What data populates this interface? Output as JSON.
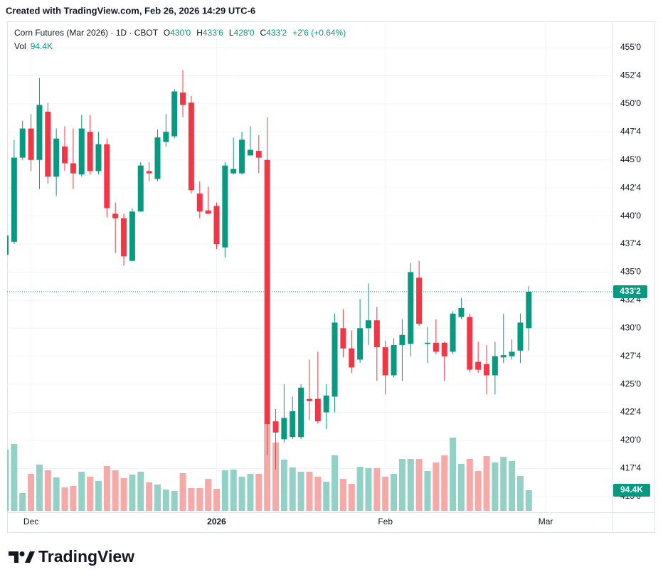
{
  "header": {
    "credit": "Created with TradingView.com, Feb 26, 2026 14:29 UTC-6"
  },
  "footer": {
    "logo": "TradingView"
  },
  "chart_data": {
    "type": "candlestick",
    "title": "Corn Futures (Mar 2026) · 1D · CBOT",
    "ohlc_legend": [
      {
        "key": "O",
        "value": 430,
        "label": "430'0"
      },
      {
        "key": "H",
        "value": 433.75,
        "label": "433'6"
      },
      {
        "key": "L",
        "value": 428,
        "label": "428'0"
      },
      {
        "key": "C",
        "value": 433.25,
        "label": "433'2"
      }
    ],
    "change": "+2'6 (+0.64%)",
    "volume_legend": {
      "key": "Vol",
      "value": 94400,
      "label": "94.4K"
    },
    "last_price": {
      "value": 433.25,
      "label": "433'2"
    },
    "up_color": "#089981",
    "down_color": "#f23645",
    "up_volume_color": "#92d2c6",
    "down_volume_color": "#f7a9a7",
    "grid": true,
    "categories": [
      null,
      null,
      null,
      "Dec",
      null,
      null,
      null,
      null,
      null,
      null,
      null,
      null,
      null,
      null,
      null,
      null,
      null,
      null,
      null,
      null,
      null,
      null,
      null,
      null,
      null,
      "2026",
      null,
      null,
      null,
      null,
      null,
      null,
      null,
      null,
      null,
      null,
      null,
      null,
      null,
      null,
      null,
      null,
      null,
      null,
      null,
      "Feb",
      null,
      null,
      null,
      null,
      null,
      null,
      null,
      null,
      null,
      null,
      null,
      null,
      null,
      null,
      null,
      null,
      null,
      null,
      "Mar"
    ],
    "open": [
      436.55,
      437.7,
      445.2,
      447.8,
      445,
      449.3,
      443.5,
      446.2,
      444.7,
      443.7,
      447.5,
      444,
      446.4,
      440.2,
      439.8,
      436,
      440.4,
      444,
      443.3,
      446.6,
      447.1,
      451,
      450.1,
      442,
      440.5,
      440.9,
      437.2,
      443.8,
      443.8,
      445.4,
      445.8,
      445,
      421.7,
      420.1,
      420.3,
      420.3,
      423.7,
      423.7,
      422.5,
      423.9,
      430,
      428.2,
      427.2,
      430,
      430.7,
      428.3,
      425.8,
      428.5,
      428.6,
      434.5,
      428.6,
      428.7,
      428.7,
      427.9,
      431,
      431,
      427,
      426.8,
      425.8,
      427.4,
      427.5,
      428,
      430,
      null,
      null
    ],
    "high": [
      438.3,
      446.8,
      448.5,
      449.1,
      452.3,
      450.1,
      447.8,
      448,
      447.8,
      449,
      449,
      447.5,
      446.9,
      441.2,
      440.2,
      440.7,
      444.8,
      444.8,
      447.7,
      449.1,
      451.3,
      453,
      450.7,
      443.1,
      442.6,
      441.2,
      444.8,
      447,
      447.5,
      448,
      447.2,
      448.8,
      422.8,
      425,
      423.9,
      425,
      427.2,
      427.9,
      425,
      431.3,
      431.7,
      429.8,
      432.6,
      434,
      431.9,
      428.9,
      429.1,
      430.8,
      435.8,
      436,
      430.1,
      430.8,
      428.8,
      431.5,
      432.7,
      431.3,
      428.8,
      428.5,
      428.8,
      431.3,
      429,
      431.3,
      433.75,
      null,
      null
    ],
    "low": [
      436.5,
      437.5,
      445,
      444,
      442.4,
      442.9,
      441.8,
      444,
      442.4,
      443.5,
      443.7,
      443.7,
      439.9,
      436.7,
      435.6,
      436,
      440.4,
      443.1,
      443.1,
      446.2,
      446.9,
      448.8,
      442,
      439.8,
      440.2,
      437.05,
      436.3,
      443.7,
      443.7,
      445.4,
      443.8,
      418.7,
      417.4,
      419.8,
      420.1,
      420.1,
      421.8,
      421.5,
      421,
      422.5,
      427.4,
      426,
      426.9,
      428.5,
      425.3,
      424.1,
      425.6,
      425.3,
      427.5,
      430.2,
      426.9,
      427.7,
      425.3,
      427.7,
      430.8,
      426.1,
      426,
      424.1,
      424.1,
      426.9,
      427.2,
      426.9,
      428,
      null,
      null
    ],
    "close": [
      438.26,
      445.2,
      447.8,
      445,
      449.9,
      443.5,
      446.9,
      444.7,
      443.8,
      447.8,
      444,
      446.4,
      440.7,
      439.8,
      436.4,
      440.4,
      444.5,
      443.8,
      447,
      447.5,
      451.1,
      449.9,
      442.3,
      440.4,
      440.2,
      437.5,
      444.5,
      444.2,
      446.8,
      445.9,
      445.2,
      421.45,
      420.7,
      422,
      422.6,
      424.7,
      423.5,
      421.7,
      424,
      430.5,
      428.2,
      426.5,
      430,
      430.7,
      428.3,
      425.8,
      428.5,
      429.4,
      435,
      430.4,
      428.7,
      427.9,
      427.5,
      431.3,
      431.8,
      426.3,
      426.3,
      425.8,
      427.5,
      427.6,
      427.9,
      430.5,
      433.25,
      null,
      null
    ],
    "volume": [
      279900,
      306000,
      81400,
      169300,
      211600,
      185500,
      153000,
      107400,
      113900,
      179000,
      156200,
      136700,
      205100,
      185500,
      149700,
      166000,
      179000,
      130200,
      120400,
      97700,
      91100,
      172500,
      104200,
      104200,
      146500,
      100900,
      185500,
      188800,
      156200,
      169300,
      169300,
      400400,
      312500,
      234400,
      198600,
      179000,
      179000,
      156200,
      133500,
      253900,
      146500,
      123700,
      201800,
      195300,
      195300,
      156200,
      169300,
      237600,
      237600,
      237600,
      182300,
      221300,
      253900,
      335300,
      214800,
      237600,
      182300,
      250600,
      221300,
      247400,
      227900,
      159500,
      94400,
      null,
      null
    ],
    "ylim": [
      413.72,
      457.35
    ],
    "y2lim": [
      0,
      2240000
    ],
    "yticks": [
      {
        "value": 415,
        "label": "415'0"
      },
      {
        "value": 417.5,
        "label": "417'4"
      },
      {
        "value": 420,
        "label": "420'0"
      },
      {
        "value": 422.5,
        "label": "422'4"
      },
      {
        "value": 425,
        "label": "425'0"
      },
      {
        "value": 427.5,
        "label": "427'4"
      },
      {
        "value": 430,
        "label": "430'0"
      },
      {
        "value": 432.5,
        "label": "432'4"
      },
      {
        "value": 435,
        "label": "435'0"
      },
      {
        "value": 437.5,
        "label": "437'4"
      },
      {
        "value": 440,
        "label": "440'0"
      },
      {
        "value": 442.5,
        "label": "442'4"
      },
      {
        "value": 445,
        "label": "445'0"
      },
      {
        "value": 447.5,
        "label": "447'4"
      },
      {
        "value": 450,
        "label": "450'0"
      },
      {
        "value": 452.5,
        "label": "452'4"
      },
      {
        "value": 455,
        "label": "455'0"
      }
    ]
  }
}
